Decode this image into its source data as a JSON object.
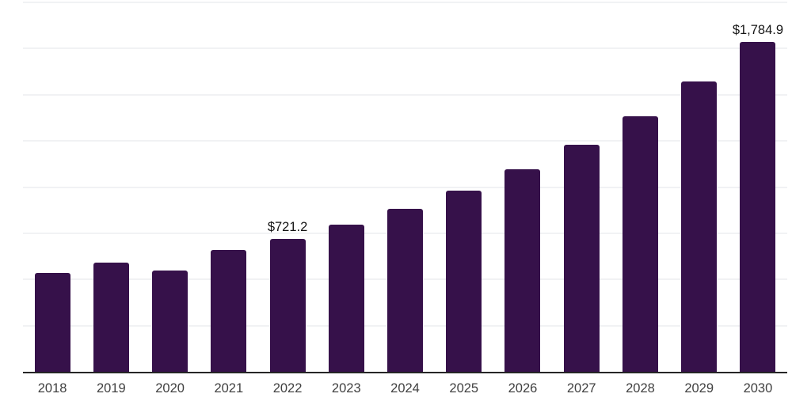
{
  "chart_data": {
    "type": "bar",
    "title": "",
    "xlabel": "",
    "ylabel": "",
    "ylim": [
      0,
      2000
    ],
    "grid_step": 250,
    "grid": true,
    "legend": false,
    "categories": [
      "2018",
      "2019",
      "2020",
      "2021",
      "2022",
      "2023",
      "2024",
      "2025",
      "2026",
      "2027",
      "2028",
      "2029",
      "2030"
    ],
    "values": [
      534.0,
      590.5,
      548.0,
      659.0,
      721.2,
      794.5,
      883.0,
      982.0,
      1096.0,
      1229.0,
      1381.5,
      1570.0,
      1784.9
    ],
    "bars": [
      {
        "year": "2018",
        "value": 534.0
      },
      {
        "year": "2019",
        "value": 590.5
      },
      {
        "year": "2020",
        "value": 548.0
      },
      {
        "year": "2021",
        "value": 659.0
      },
      {
        "year": "2022",
        "value": 721.2,
        "label": "$721.2"
      },
      {
        "year": "2023",
        "value": 794.5
      },
      {
        "year": "2024",
        "value": 883.0
      },
      {
        "year": "2025",
        "value": 982.0
      },
      {
        "year": "2026",
        "value": 1096.0
      },
      {
        "year": "2027",
        "value": 1229.0
      },
      {
        "year": "2028",
        "value": 1381.5
      },
      {
        "year": "2029",
        "value": 1570.0
      },
      {
        "year": "2030",
        "value": 1784.9,
        "label": "$1,784.9"
      }
    ],
    "colors": {
      "bar": "#36114a",
      "gridline": "#f1f2f4",
      "axis_line": "#262626",
      "data_label": "#141414",
      "tick_label": "#404040",
      "background": "#ffffff"
    }
  }
}
